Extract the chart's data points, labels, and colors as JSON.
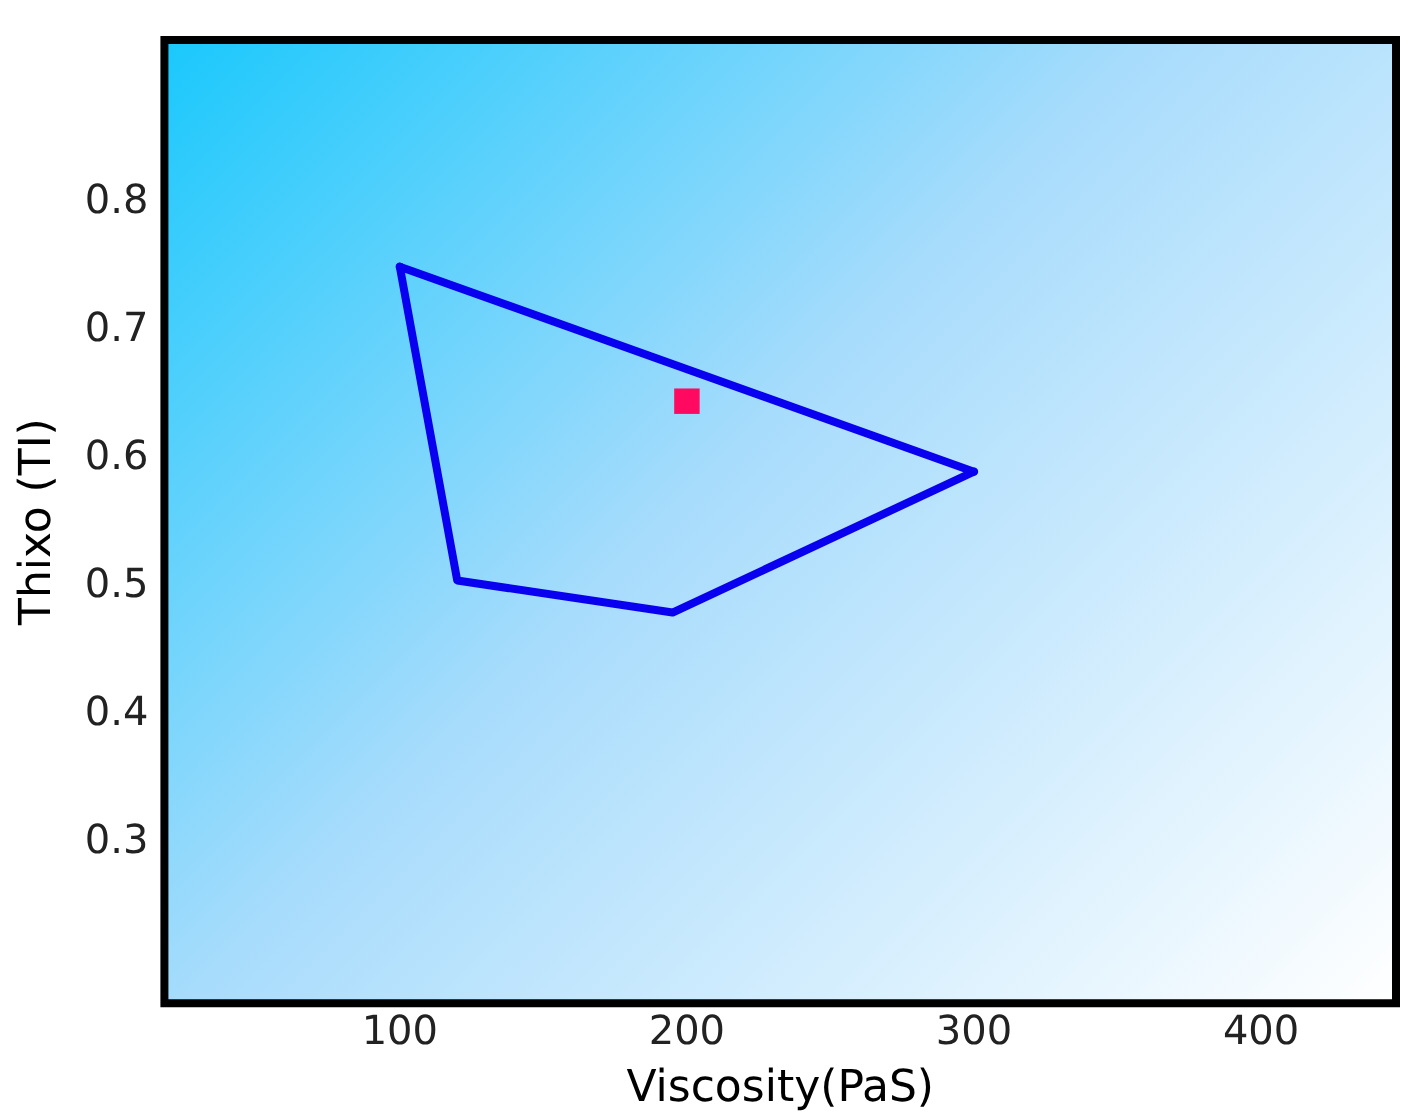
{
  "chart_data": {
    "type": "line",
    "xlabel": "Viscosity(PaS)",
    "ylabel": "Thixo (TI)",
    "xlim": [
      18,
      447
    ],
    "ylim": [
      0.175,
      0.927
    ],
    "xticks": [
      100,
      200,
      300,
      400
    ],
    "yticks": [
      0.3,
      0.4,
      0.5,
      0.6,
      0.7,
      0.8
    ],
    "grid": false,
    "legend": false,
    "series": [
      {
        "color": "#0a00f0",
        "marker": "none",
        "x": [
          100,
          300
        ],
        "values": [
          0.75,
          0.59
        ]
      },
      {
        "color": "#0a00f0",
        "marker": "none",
        "x": [
          100,
          120,
          195,
          300
        ],
        "values": [
          0.75,
          0.505,
          0.48,
          0.59
        ]
      },
      {
        "type": "scatter",
        "color": "#ff0a60",
        "marker": "square",
        "x": [
          200
        ],
        "values": [
          0.645
        ]
      }
    ]
  }
}
